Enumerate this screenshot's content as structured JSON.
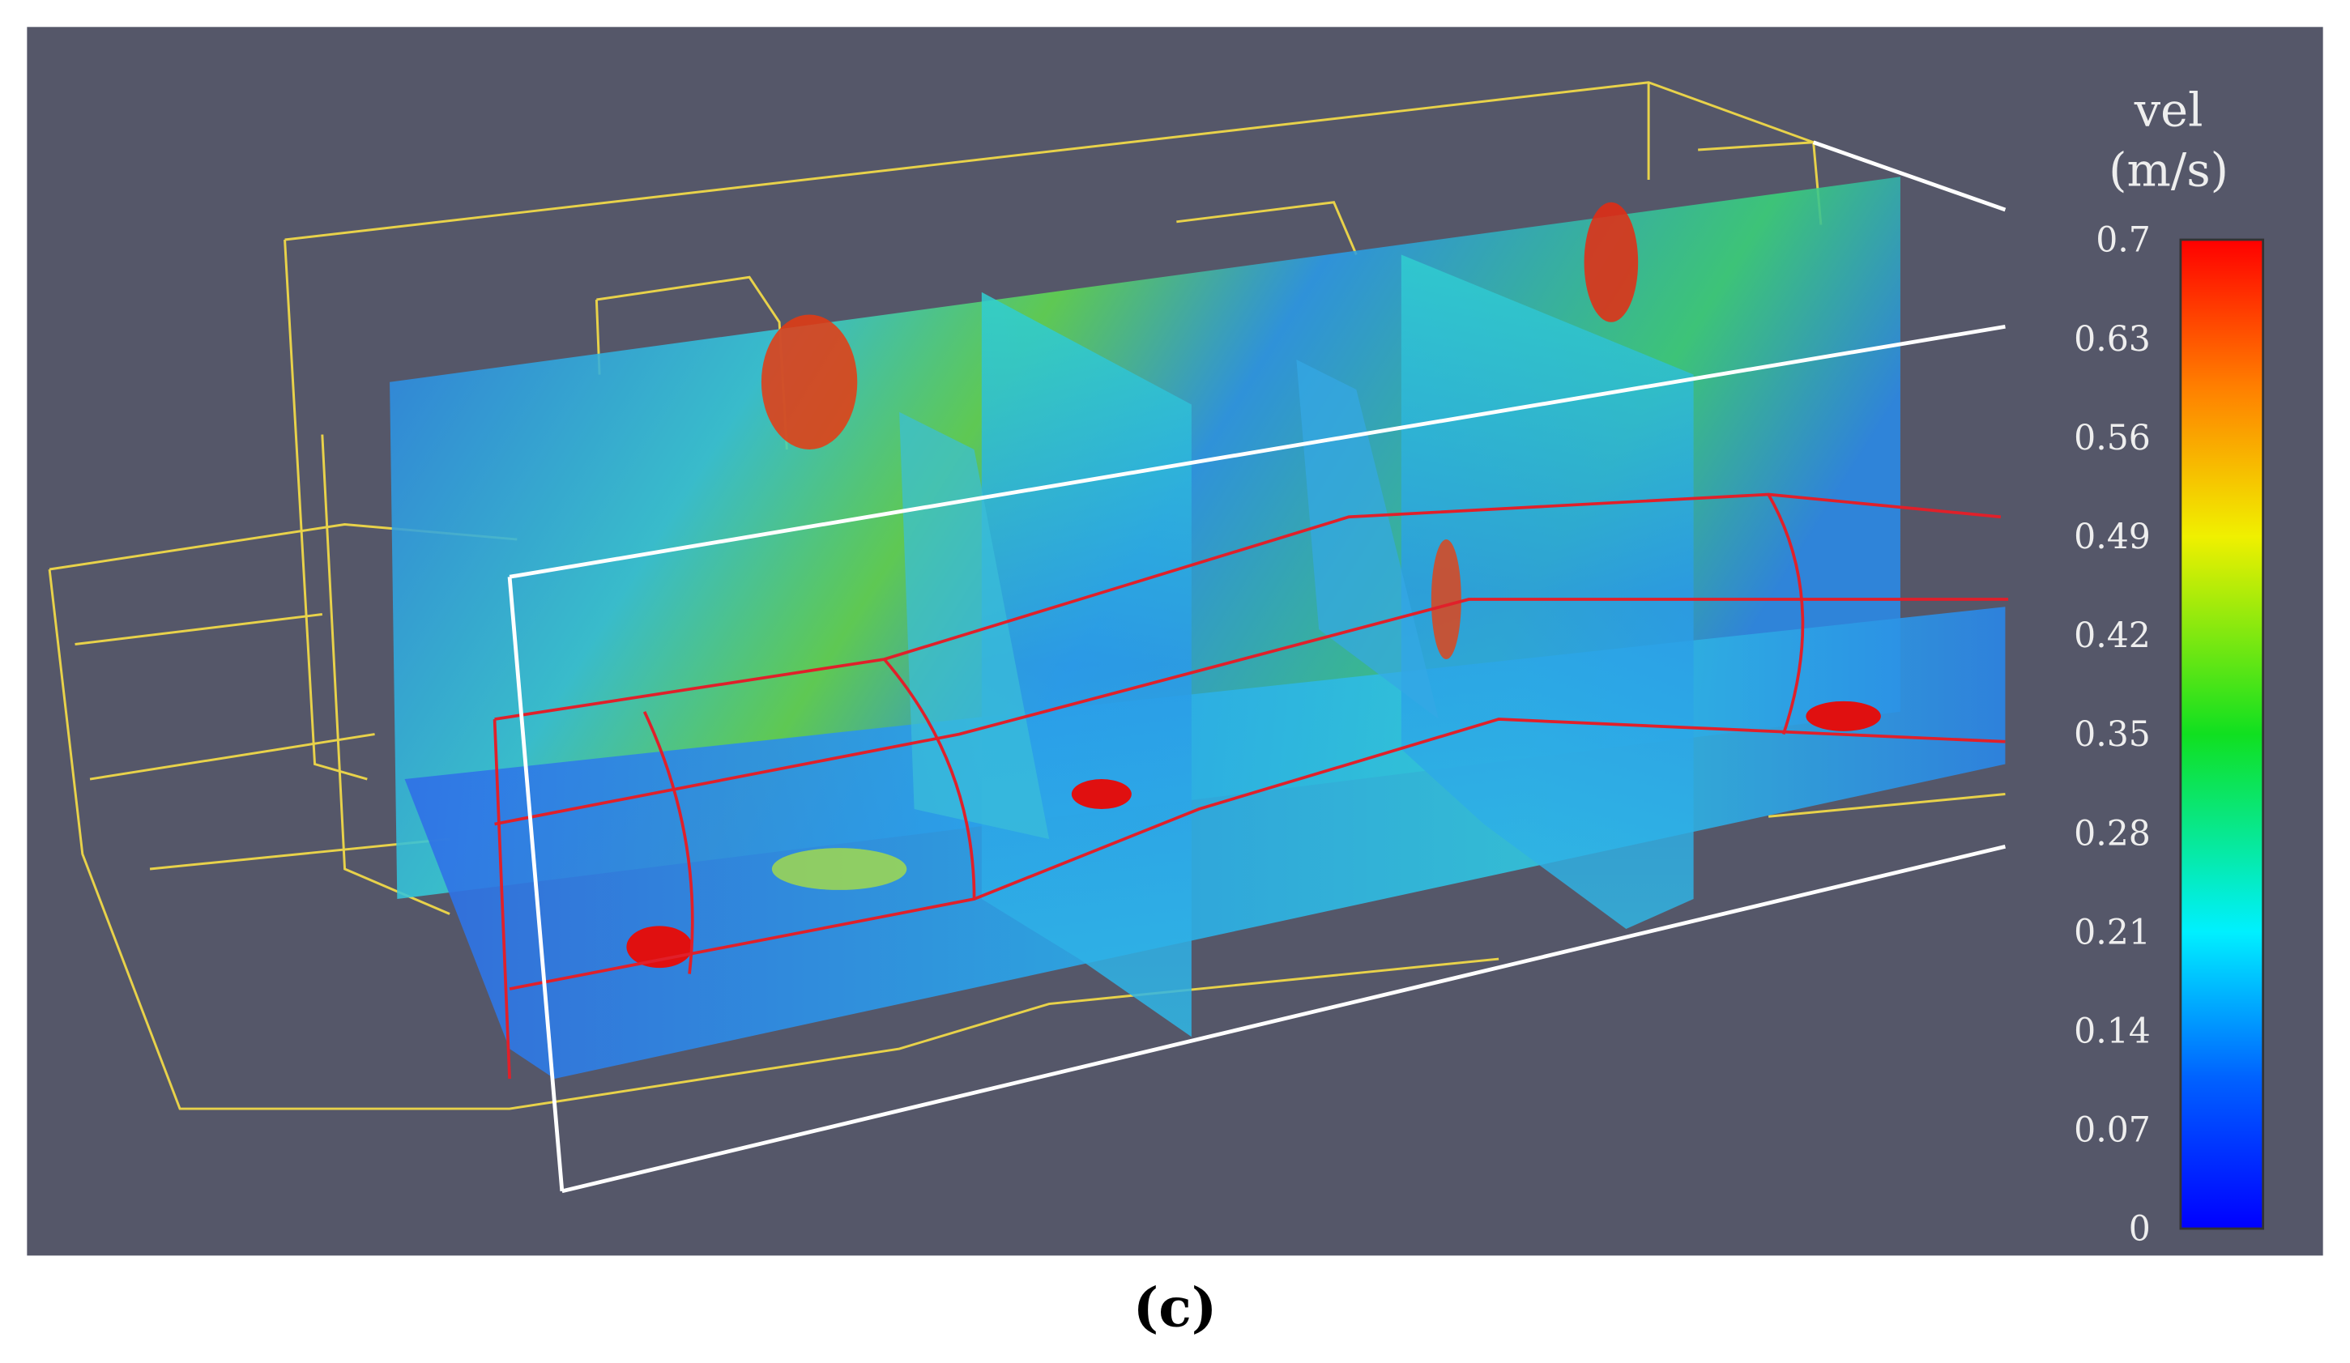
{
  "figure": {
    "colorbar": {
      "title": "vel",
      "unit": "(m/s)",
      "ticks": [
        0.7,
        0.63,
        0.56,
        0.49,
        0.42,
        0.35,
        0.28,
        0.21,
        0.14,
        0.07,
        0
      ]
    },
    "caption": "(c)"
  }
}
